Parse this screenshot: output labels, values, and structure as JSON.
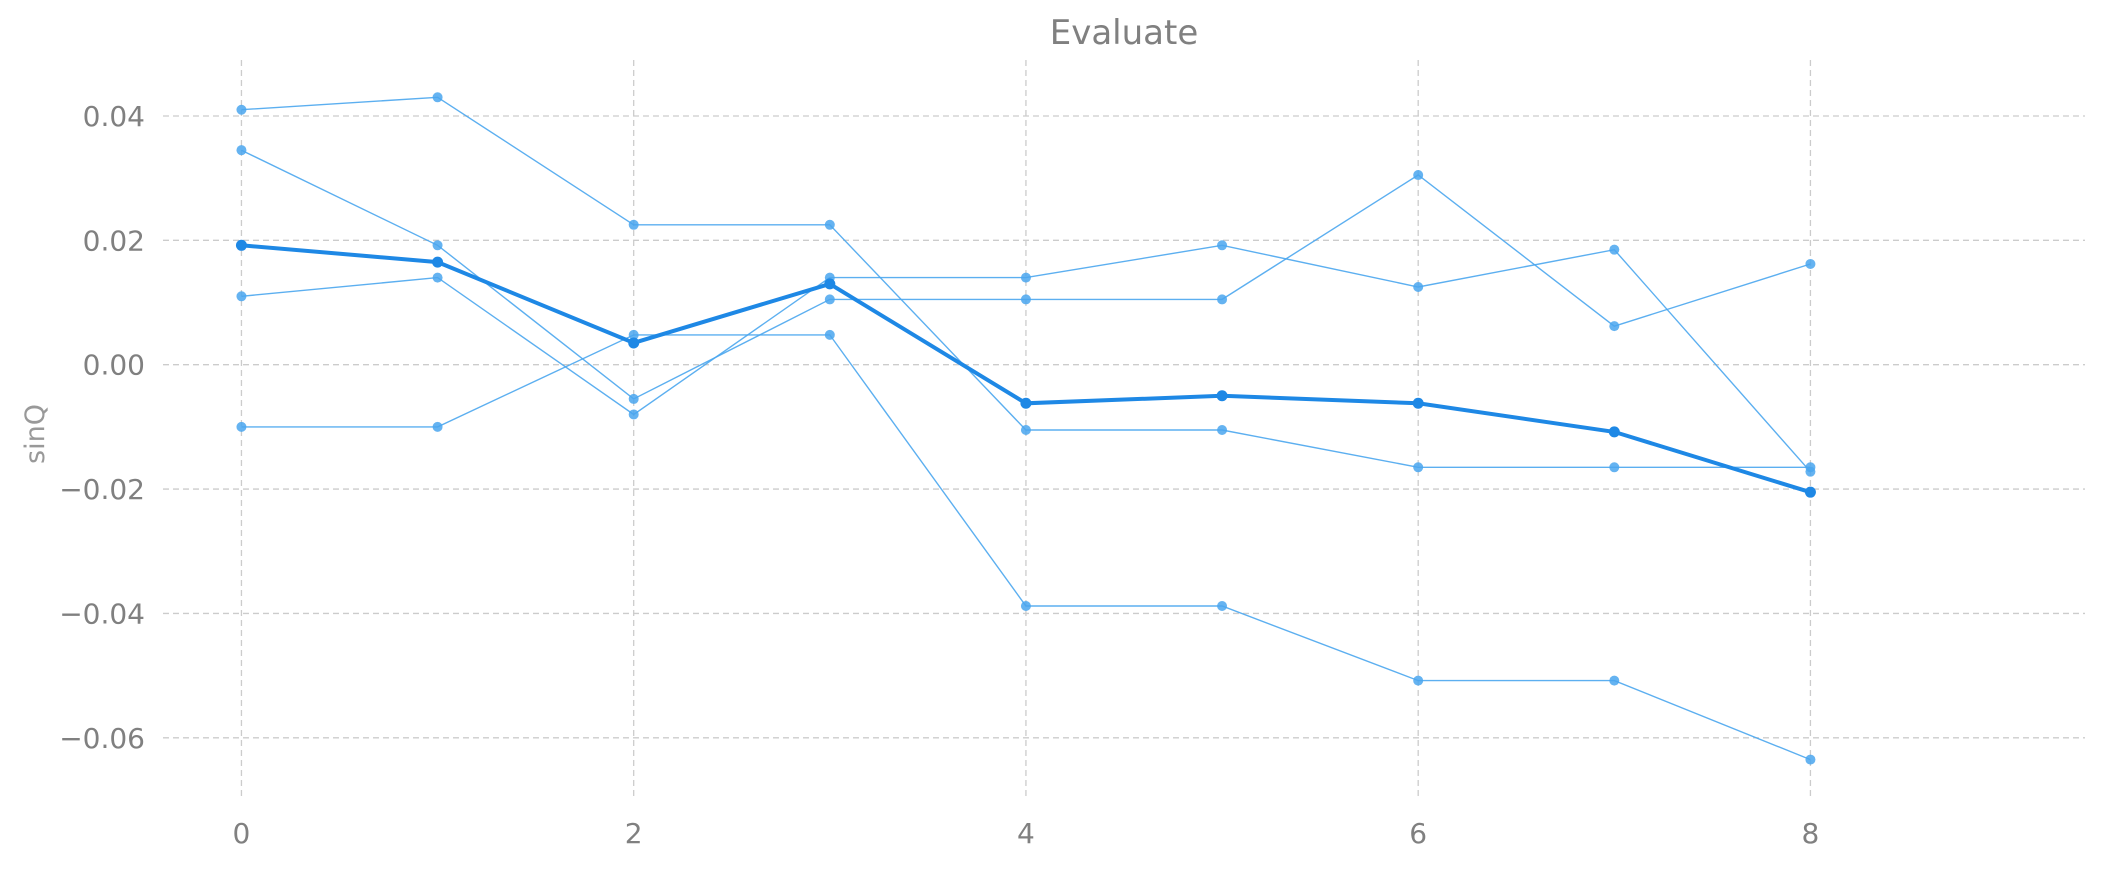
{
  "chart_data": {
    "type": "line",
    "title": "Evaluate",
    "xlabel": "",
    "ylabel": "sinQ",
    "xlim": [
      -0.4,
      9.4
    ],
    "ylim": [
      -0.07,
      0.049
    ],
    "xticks": [
      0,
      2,
      4,
      6,
      8
    ],
    "xtick_labels": [
      "0",
      "2",
      "4",
      "6",
      "8"
    ],
    "yticks": [
      0.04,
      0.02,
      0.0,
      -0.02,
      -0.04,
      -0.06
    ],
    "ytick_labels": [
      "0.04",
      "0.02",
      "0.00",
      "−0.02",
      "−0.04",
      "−0.06"
    ],
    "grid": true,
    "x": [
      0,
      1,
      2,
      3,
      4,
      5,
      6,
      7,
      8
    ],
    "series": [
      {
        "values": [
          0.041,
          0.043,
          0.0225,
          0.0225,
          -0.0105,
          -0.0105,
          -0.0165,
          -0.0165,
          -0.0165
        ],
        "style": "thin"
      },
      {
        "values": [
          0.0345,
          0.0192,
          -0.0055,
          0.0105,
          0.0105,
          0.0105,
          0.0305,
          0.0062,
          0.0162
        ],
        "style": "thin"
      },
      {
        "values": [
          0.011,
          0.014,
          -0.008,
          0.014,
          0.014,
          0.0192,
          0.0125,
          0.0185,
          -0.0172
        ],
        "style": "thin"
      },
      {
        "values": [
          -0.01,
          -0.01,
          0.0048,
          0.0048,
          -0.0388,
          -0.0388,
          -0.0508,
          -0.0508,
          -0.0635
        ],
        "style": "thin"
      },
      {
        "values": [
          0.0192,
          0.0165,
          0.0035,
          0.013,
          -0.0062,
          -0.005,
          -0.0062,
          -0.0108,
          -0.0205
        ],
        "style": "mean"
      }
    ],
    "colors": {
      "line": "#4aa6ee",
      "mean": "#1e88e5",
      "grid": "#cccccc",
      "text": "#808080"
    }
  }
}
